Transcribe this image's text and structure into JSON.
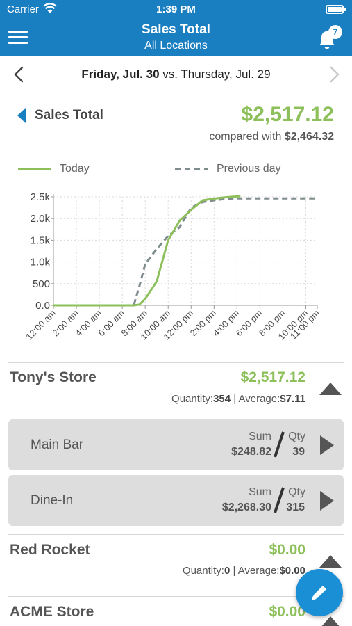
{
  "status_bar": {
    "carrier": "Carrier",
    "time": "1:39 PM",
    "icons": [
      "wifi-icon",
      "battery-icon"
    ]
  },
  "nav": {
    "title": "Sales Total",
    "subtitle": "All Locations",
    "notification_count": "7",
    "icons": [
      "menu-icon",
      "bell-icon"
    ]
  },
  "date_bar": {
    "current": "Friday, Jul. 30",
    "separator": " vs. ",
    "compare": "Thursday, Jul. 29"
  },
  "summary": {
    "title": "Sales Total",
    "value": "$2,517.12",
    "compared_label": "compared with ",
    "compared_value": "$2,464.32"
  },
  "legend": {
    "today": "Today",
    "previous": "Previous day"
  },
  "colors": {
    "accent": "#1a7fc1",
    "today_line": "#8dc05a",
    "previous_line": "#7f8c8d",
    "value_green": "#8dc05a"
  },
  "chart_data": {
    "type": "line",
    "x": [
      "12:00 am",
      "2:00 am",
      "4:00 am",
      "6:00 am",
      "8:00 am",
      "10:00 am",
      "12:00 pm",
      "2:00 pm",
      "4:00 pm",
      "6:00 pm",
      "8:00 pm",
      "10:00 pm",
      "11:00 pm"
    ],
    "x_hours": [
      0,
      2,
      4,
      6,
      8,
      10,
      12,
      14,
      16,
      18,
      20,
      22,
      23
    ],
    "series": [
      {
        "name": "Today",
        "style": "solid",
        "points": [
          [
            0,
            0
          ],
          [
            6,
            0
          ],
          [
            7,
            0
          ],
          [
            7.5,
            20
          ],
          [
            8,
            150
          ],
          [
            9,
            550
          ],
          [
            10,
            1500
          ],
          [
            11,
            1950
          ],
          [
            12,
            2200
          ],
          [
            13,
            2420
          ],
          [
            14,
            2460
          ],
          [
            15,
            2490
          ],
          [
            16,
            2510
          ],
          [
            16.3,
            2517
          ]
        ]
      },
      {
        "name": "Previous day",
        "style": "dashed",
        "points": [
          [
            0,
            0
          ],
          [
            6,
            0
          ],
          [
            7,
            0
          ],
          [
            7.5,
            450
          ],
          [
            8,
            950
          ],
          [
            9,
            1300
          ],
          [
            10,
            1600
          ],
          [
            11,
            1800
          ],
          [
            12,
            2250
          ],
          [
            13,
            2380
          ],
          [
            14,
            2420
          ],
          [
            15,
            2450
          ],
          [
            16,
            2464
          ],
          [
            23,
            2464
          ]
        ]
      }
    ],
    "y_ticks": [
      "0.0",
      "500",
      "1.0k",
      "1.5k",
      "2.0k",
      "2.5k"
    ],
    "y_tick_values": [
      0,
      500,
      1000,
      1500,
      2000,
      2500
    ],
    "ylim": [
      0,
      2500
    ],
    "xlim": [
      0,
      23
    ],
    "grid": true
  },
  "stores": [
    {
      "name": "Tony's Store",
      "total": "$2,517.12",
      "quantity_label": "Quantity:",
      "quantity": "354",
      "average_label": "Average:",
      "average": "$7.11",
      "expanded": true,
      "locations": [
        {
          "name": "Main Bar",
          "sum_label": "Sum",
          "sum": "$248.82",
          "qty_label": "Qty",
          "qty": "39"
        },
        {
          "name": "Dine-In",
          "sum_label": "Sum",
          "sum": "$2,268.30",
          "qty_label": "Qty",
          "qty": "315"
        }
      ]
    },
    {
      "name": "Red Rocket",
      "total": "$0.00",
      "quantity_label": "Quantity:",
      "quantity": "0",
      "average_label": "Average:",
      "average": "$0.00"
    },
    {
      "name": "ACME Store",
      "total": "$0.00"
    }
  ],
  "fab": {
    "icon": "pencil-icon"
  }
}
